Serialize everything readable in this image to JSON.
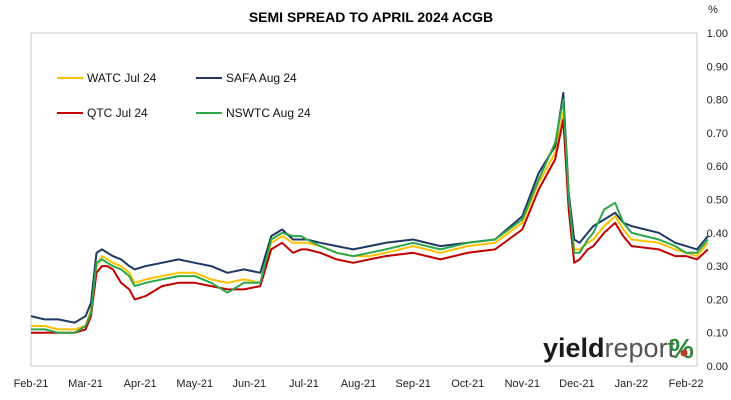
{
  "chart_data": {
    "type": "line",
    "title": "SEMI SPREAD TO APRIL 2024 ACGB",
    "y_unit": "%",
    "ylim": [
      0,
      1.0
    ],
    "y_ticks": [
      "0.00",
      "0.10",
      "0.20",
      "0.30",
      "0.40",
      "0.50",
      "0.60",
      "0.70",
      "0.80",
      "0.90",
      "1.00"
    ],
    "x_tick_labels": [
      "Feb-21",
      "Mar-21",
      "Apr-21",
      "May-21",
      "Jun-21",
      "Jul-21",
      "Aug-21",
      "Sep-21",
      "Oct-21",
      "Nov-21",
      "Dec-21",
      "Jan-22",
      "Feb-22"
    ],
    "grid": false,
    "legend_position": "top-left",
    "x": [
      0,
      0.25,
      0.5,
      0.8,
      1.0,
      1.1,
      1.2,
      1.3,
      1.4,
      1.5,
      1.65,
      1.8,
      1.9,
      2.1,
      2.4,
      2.7,
      3.0,
      3.3,
      3.6,
      3.9,
      4.2,
      4.4,
      4.6,
      4.8,
      4.95,
      5.05,
      5.3,
      5.6,
      5.9,
      6.2,
      6.5,
      7.0,
      7.5,
      8.0,
      8.5,
      9.0,
      9.3,
      9.6,
      9.75,
      9.85,
      9.95,
      10.05,
      10.2,
      10.3,
      10.5,
      10.7,
      10.85,
      11.0,
      11.5,
      11.8,
      12.0,
      12.2,
      12.4
    ],
    "series": [
      {
        "name": "WATC Jul 24",
        "color": "#ffc000",
        "values": [
          0.12,
          0.12,
          0.11,
          0.11,
          0.12,
          0.17,
          0.3,
          0.33,
          0.32,
          0.31,
          0.3,
          0.28,
          0.25,
          0.26,
          0.27,
          0.28,
          0.28,
          0.26,
          0.25,
          0.26,
          0.25,
          0.37,
          0.39,
          0.37,
          0.37,
          0.37,
          0.36,
          0.34,
          0.33,
          0.33,
          0.34,
          0.36,
          0.34,
          0.36,
          0.37,
          0.43,
          0.55,
          0.64,
          0.76,
          0.5,
          0.35,
          0.35,
          0.37,
          0.38,
          0.42,
          0.45,
          0.41,
          0.38,
          0.37,
          0.35,
          0.34,
          0.33,
          0.37
        ]
      },
      {
        "name": "SAFA Aug 24",
        "color": "#1f3864",
        "values": [
          0.15,
          0.14,
          0.14,
          0.13,
          0.15,
          0.19,
          0.34,
          0.35,
          0.34,
          0.33,
          0.32,
          0.3,
          0.29,
          0.3,
          0.31,
          0.32,
          0.31,
          0.3,
          0.28,
          0.29,
          0.28,
          0.39,
          0.41,
          0.38,
          0.38,
          0.38,
          0.37,
          0.36,
          0.35,
          0.36,
          0.37,
          0.38,
          0.36,
          0.37,
          0.38,
          0.45,
          0.58,
          0.66,
          0.82,
          0.52,
          0.38,
          0.37,
          0.4,
          0.42,
          0.44,
          0.46,
          0.43,
          0.42,
          0.4,
          0.37,
          0.36,
          0.35,
          0.39
        ]
      },
      {
        "name": "QTC Jul 24",
        "color": "#c00000",
        "values": [
          0.1,
          0.1,
          0.1,
          0.1,
          0.11,
          0.15,
          0.28,
          0.3,
          0.3,
          0.29,
          0.25,
          0.23,
          0.2,
          0.21,
          0.24,
          0.25,
          0.25,
          0.24,
          0.23,
          0.23,
          0.24,
          0.35,
          0.37,
          0.34,
          0.35,
          0.35,
          0.34,
          0.32,
          0.31,
          0.32,
          0.33,
          0.34,
          0.32,
          0.34,
          0.35,
          0.41,
          0.53,
          0.62,
          0.74,
          0.47,
          0.31,
          0.32,
          0.35,
          0.36,
          0.4,
          0.43,
          0.39,
          0.36,
          0.35,
          0.33,
          0.33,
          0.32,
          0.35
        ]
      },
      {
        "name": "NSWTC Aug 24",
        "color": "#2ca84a",
        "values": [
          0.11,
          0.11,
          0.1,
          0.1,
          0.12,
          0.16,
          0.31,
          0.32,
          0.31,
          0.3,
          0.29,
          0.27,
          0.24,
          0.25,
          0.26,
          0.27,
          0.27,
          0.25,
          0.22,
          0.25,
          0.25,
          0.38,
          0.4,
          0.39,
          0.39,
          0.38,
          0.36,
          0.34,
          0.33,
          0.34,
          0.35,
          0.37,
          0.35,
          0.37,
          0.38,
          0.44,
          0.56,
          0.67,
          0.8,
          0.51,
          0.34,
          0.34,
          0.38,
          0.4,
          0.47,
          0.49,
          0.43,
          0.4,
          0.38,
          0.36,
          0.34,
          0.34,
          0.38
        ]
      }
    ]
  },
  "watermark": {
    "part1": "yield",
    "part2": "report",
    "symbol": "%",
    "colors": {
      "dark": "#1a1a1a",
      "grey": "#555555",
      "green": "#2e8b3a",
      "red": "#c0392b"
    }
  }
}
